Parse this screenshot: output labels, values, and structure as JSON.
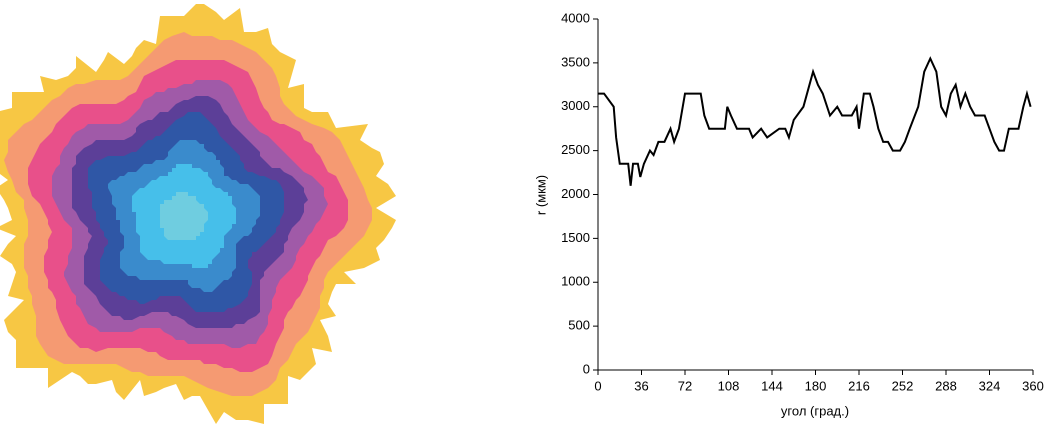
{
  "chart_data": {
    "type": "line",
    "xlabel": "угол (град.)",
    "ylabel": "r (мкм)",
    "xlim": [
      0,
      360
    ],
    "xticks": [
      0,
      36,
      72,
      108,
      144,
      180,
      216,
      252,
      288,
      324,
      360
    ],
    "ylim": [
      0,
      4000
    ],
    "yticks": [
      0,
      500,
      1000,
      1500,
      2000,
      2500,
      3000,
      3500,
      4000
    ],
    "series": [
      {
        "color": "#000000",
        "x": [
          0,
          5,
          13,
          15,
          18,
          25,
          27,
          29,
          33,
          35,
          38,
          43,
          46,
          50,
          55,
          60,
          63,
          67,
          72,
          85,
          88,
          92,
          105,
          107,
          110,
          115,
          125,
          128,
          135,
          140,
          150,
          155,
          158,
          162,
          170,
          175,
          178,
          182,
          186,
          192,
          198,
          202,
          210,
          214,
          216,
          220,
          225,
          228,
          232,
          236,
          240,
          244,
          250,
          254,
          258,
          265,
          270,
          275,
          280,
          284,
          288,
          292,
          296,
          300,
          304,
          308,
          312,
          320,
          324,
          328,
          332,
          336,
          340,
          348,
          352,
          355,
          358
        ],
        "values": [
          3150,
          3150,
          3000,
          2650,
          2350,
          2350,
          2100,
          2350,
          2350,
          2200,
          2350,
          2500,
          2450,
          2600,
          2600,
          2750,
          2600,
          2750,
          3150,
          3150,
          2900,
          2750,
          2750,
          3000,
          2900,
          2750,
          2750,
          2650,
          2750,
          2650,
          2750,
          2750,
          2650,
          2850,
          3000,
          3250,
          3400,
          3250,
          3150,
          2900,
          3000,
          2900,
          2900,
          3000,
          2750,
          3150,
          3150,
          3000,
          2750,
          2600,
          2600,
          2500,
          2500,
          2600,
          2750,
          3000,
          3400,
          3550,
          3400,
          3000,
          2900,
          3150,
          3250,
          3000,
          3150,
          3000,
          2900,
          2900,
          2750,
          2600,
          2500,
          2500,
          2750,
          2750,
          3000,
          3150,
          3000
        ]
      }
    ]
  }
}
